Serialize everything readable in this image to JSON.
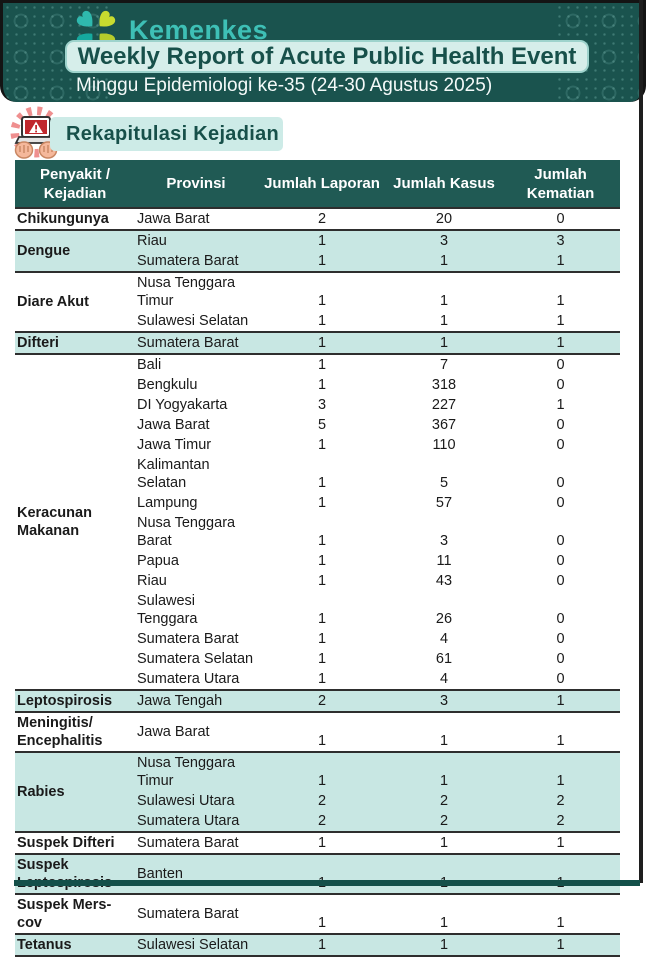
{
  "header": {
    "brand": "Kemenkes",
    "title": "Weekly Report of Acute Public Health Event",
    "subtitle": "Minggu Epidemiologi ke-35 (24-30 Agustus 2025)"
  },
  "section": {
    "title": "Rekapitulasi Kejadian",
    "icon": "alert-laptop-icon"
  },
  "colors": {
    "header_bg": "#1a534e",
    "brand_text": "#3ec0b6",
    "title_pill_bg": "#d6eeea",
    "accent_dark_teal": "#17504a",
    "table_header_bg": "#205a54",
    "row_highlight": "#c8e7e3",
    "logo_teal": "#2fb9ae",
    "logo_lime": "#c7db2f",
    "alert_red": "#c0272d"
  },
  "table": {
    "columns": [
      "Penyakit /\nKejadian",
      "Provinsi",
      "Jumlah Laporan",
      "Jumlah Kasus",
      "Jumlah\nKematian"
    ],
    "groups": [
      {
        "disease": "Chikungunya",
        "rows": [
          {
            "provinsi": "Jawa Barat",
            "laporan": "2",
            "kasus": "20",
            "kematian": "0"
          }
        ]
      },
      {
        "disease": "Dengue",
        "rows": [
          {
            "provinsi": "Riau",
            "laporan": "1",
            "kasus": "3",
            "kematian": "3"
          },
          {
            "provinsi": "Sumatera Barat",
            "laporan": "1",
            "kasus": "1",
            "kematian": "1"
          }
        ]
      },
      {
        "disease": "Diare Akut",
        "rows": [
          {
            "provinsi": "Nusa Tenggara\nTimur",
            "laporan": "1",
            "kasus": "1",
            "kematian": "1"
          },
          {
            "provinsi": "Sulawesi Selatan",
            "laporan": "1",
            "kasus": "1",
            "kematian": "1"
          }
        ]
      },
      {
        "disease": "Difteri",
        "rows": [
          {
            "provinsi": "Sumatera Barat",
            "laporan": "1",
            "kasus": "1",
            "kematian": "1"
          }
        ]
      },
      {
        "disease": "Keracunan\nMakanan",
        "rows": [
          {
            "provinsi": "Bali",
            "laporan": "1",
            "kasus": "7",
            "kematian": "0"
          },
          {
            "provinsi": "Bengkulu",
            "laporan": "1",
            "kasus": "318",
            "kematian": "0"
          },
          {
            "provinsi": "DI Yogyakarta",
            "laporan": "3",
            "kasus": "227",
            "kematian": "1"
          },
          {
            "provinsi": "Jawa Barat",
            "laporan": "5",
            "kasus": "367",
            "kematian": "0"
          },
          {
            "provinsi": "Jawa Timur",
            "laporan": "1",
            "kasus": "110",
            "kematian": "0"
          },
          {
            "provinsi": "Kalimantan\nSelatan",
            "laporan": "1",
            "kasus": "5",
            "kematian": "0"
          },
          {
            "provinsi": "Lampung",
            "laporan": "1",
            "kasus": "57",
            "kematian": "0"
          },
          {
            "provinsi": "Nusa Tenggara\nBarat",
            "laporan": "1",
            "kasus": "3",
            "kematian": "0"
          },
          {
            "provinsi": "Papua",
            "laporan": "1",
            "kasus": "11",
            "kematian": "0"
          },
          {
            "provinsi": "Riau",
            "laporan": "1",
            "kasus": "43",
            "kematian": "0"
          },
          {
            "provinsi": "Sulawesi Tenggara",
            "laporan": "1",
            "kasus": "26",
            "kematian": "0"
          },
          {
            "provinsi": "Sumatera Barat",
            "laporan": "1",
            "kasus": "4",
            "kematian": "0"
          },
          {
            "provinsi": "Sumatera Selatan",
            "laporan": "1",
            "kasus": "61",
            "kematian": "0"
          },
          {
            "provinsi": "Sumatera Utara",
            "laporan": "1",
            "kasus": "4",
            "kematian": "0"
          }
        ]
      },
      {
        "disease": "Leptospirosis",
        "rows": [
          {
            "provinsi": "Jawa Tengah",
            "laporan": "2",
            "kasus": "3",
            "kematian": "1"
          }
        ]
      },
      {
        "disease": "Meningitis/\nEncephalitis",
        "rows": [
          {
            "provinsi": "Jawa Barat",
            "laporan": "1",
            "kasus": "1",
            "kematian": "1"
          }
        ]
      },
      {
        "disease": "Rabies",
        "rows": [
          {
            "provinsi": "Nusa Tenggara\nTimur",
            "laporan": "1",
            "kasus": "1",
            "kematian": "1"
          },
          {
            "provinsi": "Sulawesi Utara",
            "laporan": "2",
            "kasus": "2",
            "kematian": "2"
          },
          {
            "provinsi": "Sumatera Utara",
            "laporan": "2",
            "kasus": "2",
            "kematian": "2"
          }
        ]
      },
      {
        "disease": "Suspek Difteri",
        "rows": [
          {
            "provinsi": "Sumatera Barat",
            "laporan": "1",
            "kasus": "1",
            "kematian": "1"
          }
        ]
      },
      {
        "disease": "Suspek\nLeptospirosis",
        "rows": [
          {
            "provinsi": "Banten",
            "laporan": "1",
            "kasus": "1",
            "kematian": "1"
          }
        ]
      },
      {
        "disease": "Suspek Mers-cov",
        "rows": [
          {
            "provinsi": "Sumatera Barat",
            "laporan": "1",
            "kasus": "1",
            "kematian": "1"
          }
        ]
      },
      {
        "disease": "Tetanus",
        "rows": [
          {
            "provinsi": "Sulawesi Selatan",
            "laporan": "1",
            "kasus": "1",
            "kematian": "1"
          }
        ]
      }
    ]
  }
}
